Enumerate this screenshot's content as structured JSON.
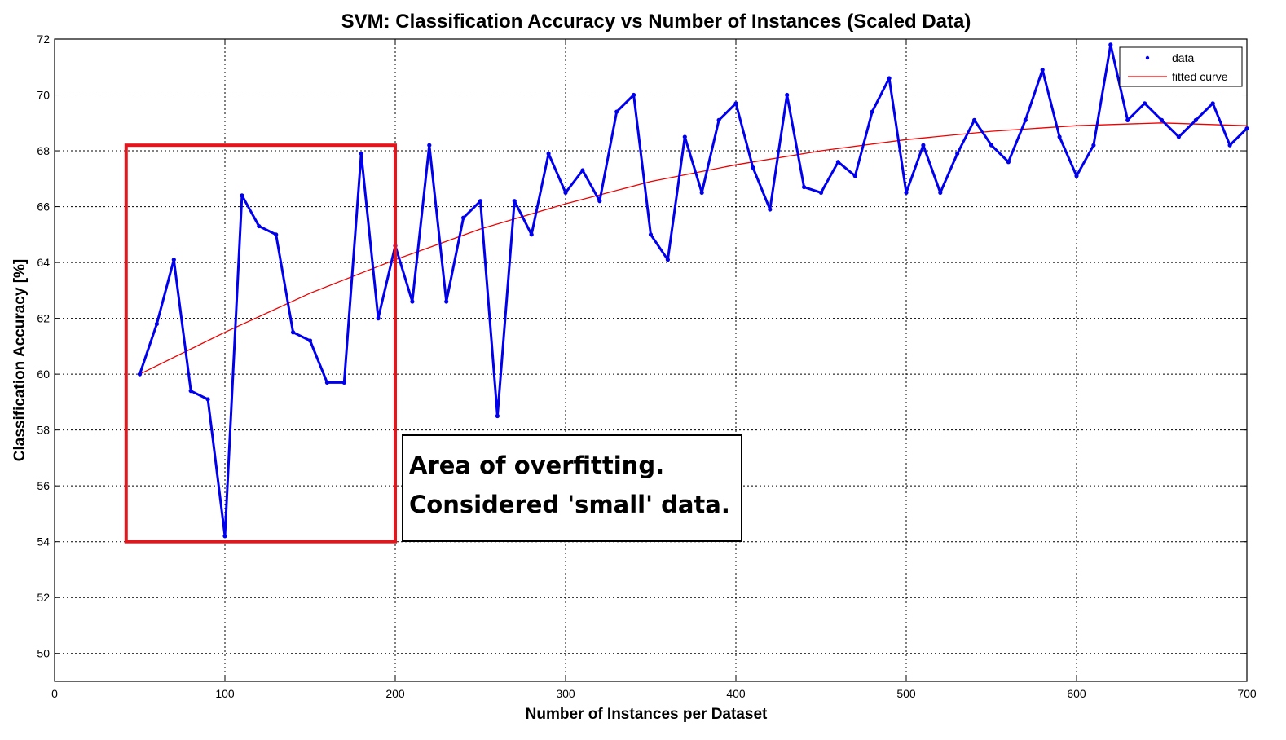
{
  "chart_data": {
    "type": "line",
    "title": "SVM: Classification Accuracy vs Number of Instances (Scaled Data)",
    "xlabel": "Number of Instances per Dataset",
    "ylabel": "Classification Accuracy [%]",
    "xlim": [
      0,
      700
    ],
    "ylim": [
      49,
      72
    ],
    "xticks": [
      0,
      100,
      200,
      300,
      400,
      500,
      600,
      700
    ],
    "yticks": [
      50,
      52,
      54,
      56,
      58,
      60,
      62,
      64,
      66,
      68,
      70,
      72
    ],
    "grid": true,
    "legend_position": "top-right",
    "colors": {
      "data": "#0000ee",
      "fitted_curve": "#ee0000",
      "annotation_box": "#e8141c"
    },
    "series": [
      {
        "name": "data",
        "x": [
          50,
          60,
          70,
          80,
          90,
          100,
          110,
          120,
          130,
          140,
          150,
          160,
          170,
          180,
          190,
          200,
          210,
          220,
          230,
          240,
          250,
          260,
          270,
          280,
          290,
          300,
          310,
          320,
          330,
          340,
          350,
          360,
          370,
          380,
          390,
          400,
          410,
          420,
          430,
          440,
          450,
          460,
          470,
          480,
          490,
          500,
          510,
          520,
          530,
          540,
          550,
          560,
          570,
          580,
          590,
          600,
          610,
          620,
          630,
          640,
          650,
          660,
          670,
          680,
          690,
          700
        ],
        "y": [
          60.0,
          61.8,
          64.1,
          59.4,
          59.1,
          54.2,
          66.4,
          65.3,
          65.0,
          61.5,
          61.2,
          59.7,
          59.7,
          67.9,
          62.0,
          64.6,
          62.6,
          68.2,
          62.6,
          65.6,
          66.2,
          58.5,
          66.2,
          65.0,
          67.9,
          66.5,
          67.3,
          66.2,
          69.4,
          70.0,
          65.0,
          64.1,
          68.5,
          66.5,
          69.1,
          69.7,
          67.4,
          65.9,
          70.0,
          66.7,
          66.5,
          67.6,
          67.1,
          69.4,
          70.6,
          66.5,
          68.2,
          66.5,
          67.9,
          69.1,
          68.2,
          67.6,
          69.1,
          70.9,
          68.5,
          67.1,
          68.2,
          71.8,
          69.1,
          69.7,
          69.1,
          68.5,
          69.1,
          69.7,
          68.2,
          68.8
        ]
      },
      {
        "name": "fitted curve",
        "x": [
          50,
          100,
          150,
          200,
          250,
          300,
          350,
          400,
          450,
          500,
          550,
          600,
          650,
          700
        ],
        "y": [
          60.0,
          61.5,
          62.9,
          64.1,
          65.2,
          66.1,
          66.9,
          67.5,
          68.0,
          68.4,
          68.7,
          68.9,
          69.0,
          68.9
        ]
      }
    ],
    "annotation": {
      "highlight_region": {
        "x": [
          42,
          200
        ],
        "y": [
          54,
          68.2
        ]
      },
      "lines": [
        "Area of overfitting.",
        "Considered 'small' data."
      ]
    }
  }
}
